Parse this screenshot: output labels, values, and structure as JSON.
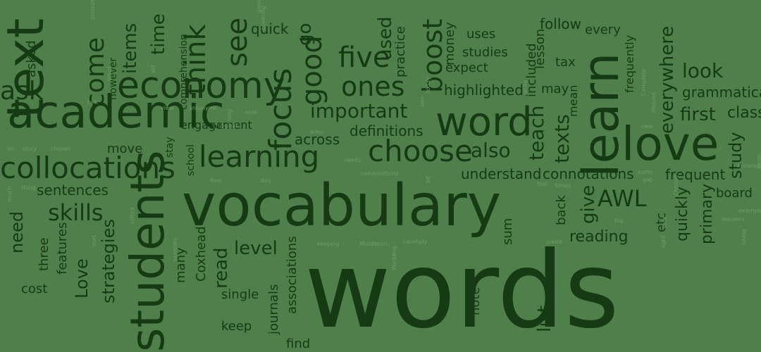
{
  "palette": {
    "background": "#4f7f4b",
    "dark": "#163b14",
    "mid": "#1f4a1c",
    "faint": "#6f9a6a"
  },
  "words": [
    {
      "text": "words",
      "tone": "dark",
      "rot": 0
    },
    {
      "text": "vocabulary",
      "tone": "dark",
      "rot": 0
    },
    {
      "text": "students",
      "tone": "dark",
      "rot": -90
    },
    {
      "text": "text",
      "tone": "dark",
      "rot": -90
    },
    {
      "text": "academic",
      "tone": "dark",
      "rot": 0
    },
    {
      "text": "learn",
      "tone": "dark",
      "rot": -90
    },
    {
      "text": "love",
      "tone": "dark",
      "rot": 0
    },
    {
      "text": "economy",
      "tone": "dark",
      "rot": 0
    },
    {
      "text": "collocations",
      "tone": "dark",
      "rot": 0
    },
    {
      "text": "word",
      "tone": "dark",
      "rot": 0
    },
    {
      "text": "choose",
      "tone": "dark",
      "rot": 0
    },
    {
      "text": "learning",
      "tone": "dark",
      "rot": 0
    },
    {
      "text": "focus",
      "tone": "dark",
      "rot": -90
    },
    {
      "text": "good",
      "tone": "dark",
      "rot": -90
    },
    {
      "text": "think",
      "tone": "dark",
      "rot": -90
    },
    {
      "text": "see",
      "tone": "dark",
      "rot": -90
    },
    {
      "text": "five",
      "tone": "dark",
      "rot": 0
    },
    {
      "text": "ones",
      "tone": "dark",
      "rot": 0
    },
    {
      "text": "boost",
      "tone": "dark",
      "rot": -90
    },
    {
      "text": "come",
      "tone": "dark",
      "rot": -90
    },
    {
      "text": "important",
      "tone": "dark",
      "rot": 0
    },
    {
      "text": "skills",
      "tone": "dark",
      "rot": 0
    },
    {
      "text": "AWL",
      "tone": "dark",
      "rot": 0
    },
    {
      "text": "look",
      "tone": "dark",
      "rot": 0
    },
    {
      "text": "first",
      "tone": "dark",
      "rot": 0
    },
    {
      "text": "everywhere",
      "tone": "dark",
      "rot": -90
    },
    {
      "text": "also",
      "tone": "dark",
      "rot": 0
    },
    {
      "text": "give",
      "tone": "dark",
      "rot": -90
    },
    {
      "text": "teach",
      "tone": "dark",
      "rot": -90
    },
    {
      "text": "texts",
      "tone": "dark",
      "rot": -90
    },
    {
      "text": "used",
      "tone": "dark",
      "rot": -90
    },
    {
      "text": "items",
      "tone": "dark",
      "rot": -90
    },
    {
      "text": "time",
      "tone": "dark",
      "rot": -90
    },
    {
      "text": "go",
      "tone": "dark",
      "rot": -90
    },
    {
      "text": "strategies",
      "tone": "dark",
      "rot": -90
    },
    {
      "text": "level",
      "tone": "dark",
      "rot": 0
    },
    {
      "text": "read",
      "tone": "dark",
      "rot": -90
    },
    {
      "text": "reading",
      "tone": "dark",
      "rot": 0
    },
    {
      "text": "frequent",
      "tone": "dark",
      "rot": 0
    },
    {
      "text": "board",
      "tone": "dark",
      "rot": 0
    },
    {
      "text": "study",
      "tone": "dark",
      "rot": -90
    },
    {
      "text": "list",
      "tone": "dark",
      "rot": -90
    },
    {
      "text": "need",
      "tone": "dark",
      "rot": -90
    },
    {
      "text": "Love",
      "tone": "dark",
      "rot": -90
    },
    {
      "text": "definitions",
      "tone": "dark",
      "rot": 0
    },
    {
      "text": "across",
      "tone": "dark",
      "rot": 0
    },
    {
      "text": "understand",
      "tone": "dark",
      "rot": 0
    },
    {
      "text": "connotations",
      "tone": "dark",
      "rot": 0
    },
    {
      "text": "highlighted",
      "tone": "dark",
      "rot": 0
    },
    {
      "text": "grammatical",
      "tone": "dark",
      "rot": 0
    },
    {
      "text": "classes",
      "tone": "dark",
      "rot": 0
    },
    {
      "text": "quickly",
      "tone": "dark",
      "rot": -90
    },
    {
      "text": "primary",
      "tone": "dark",
      "rot": -90
    },
    {
      "text": "sentences",
      "tone": "dark",
      "rot": 0
    },
    {
      "text": "move",
      "tone": "dark",
      "rot": 0
    },
    {
      "text": "engagement",
      "tone": "dark",
      "rot": 0
    },
    {
      "text": "follow",
      "tone": "dark",
      "rot": 0
    },
    {
      "text": "every",
      "tone": "dark",
      "rot": 0
    },
    {
      "text": "uses",
      "tone": "dark",
      "rot": 0
    },
    {
      "text": "studies",
      "tone": "dark",
      "rot": 0
    },
    {
      "text": "expect",
      "tone": "dark",
      "rot": 0
    },
    {
      "text": "may",
      "tone": "dark",
      "rot": 0
    },
    {
      "text": "tax",
      "tone": "dark",
      "rot": 0
    },
    {
      "text": "quick",
      "tone": "dark",
      "rot": 0
    },
    {
      "text": "practice",
      "tone": "dark",
      "rot": -90
    },
    {
      "text": "money",
      "tone": "dark",
      "rot": -90
    },
    {
      "text": "lesson",
      "tone": "dark",
      "rot": -90
    },
    {
      "text": "included",
      "tone": "dark",
      "rot": -90
    },
    {
      "text": "frequently",
      "tone": "dark",
      "rot": -90
    },
    {
      "text": "mean",
      "tone": "dark",
      "rot": -90
    },
    {
      "text": "back",
      "tone": "dark",
      "rot": -90
    },
    {
      "text": "etc",
      "tone": "dark",
      "rot": -90
    },
    {
      "text": "sum",
      "tone": "dark",
      "rot": -90
    },
    {
      "text": "note",
      "tone": "dark",
      "rot": -90
    },
    {
      "text": "find",
      "tone": "dark",
      "rot": 0
    },
    {
      "text": "keep",
      "tone": "dark",
      "rot": 0
    },
    {
      "text": "single",
      "tone": "dark",
      "rot": 0
    },
    {
      "text": "journals",
      "tone": "dark",
      "rot": -90
    },
    {
      "text": "associations",
      "tone": "dark",
      "rot": -90
    },
    {
      "text": "Coxhead",
      "tone": "dark",
      "rot": -90
    },
    {
      "text": "many",
      "tone": "dark",
      "rot": -90
    },
    {
      "text": "cost",
      "tone": "dark",
      "rot": 0
    },
    {
      "text": "three",
      "tone": "dark",
      "rot": -90
    },
    {
      "text": "features",
      "tone": "dark",
      "rot": -90
    },
    {
      "text": "however",
      "tone": "dark",
      "rot": -90
    },
    {
      "text": "asked",
      "tone": "dark",
      "rot": -90
    },
    {
      "text": "comprehension",
      "tone": "dark",
      "rot": -90
    },
    {
      "text": "stay",
      "tone": "dark",
      "rot": -90
    },
    {
      "text": "school",
      "tone": "dark",
      "rot": -90
    },
    {
      "text": "ask",
      "tone": "dark",
      "rot": 0
    },
    {
      "text": "covering",
      "tone": "faint",
      "rot": -90
    },
    {
      "text": "general",
      "tone": "faint",
      "rot": -90
    },
    {
      "text": "pronunciation",
      "tone": "faint",
      "rot": -90
    },
    {
      "text": "wit",
      "tone": "faint",
      "rot": -90
    },
    {
      "text": "Word",
      "tone": "faint",
      "rot": -90
    },
    {
      "text": "talk",
      "tone": "faint",
      "rot": 0
    },
    {
      "text": "view",
      "tone": "faint",
      "rot": 0
    },
    {
      "text": "antonyms",
      "tone": "faint",
      "rot": 0
    },
    {
      "text": "side",
      "tone": "faint",
      "rot": 0
    },
    {
      "text": "long",
      "tone": "faint",
      "rot": -90
    },
    {
      "text": "chit-chat",
      "tone": "faint",
      "rot": 0
    },
    {
      "text": "aims",
      "tone": "faint",
      "rot": 0
    },
    {
      "text": "aim",
      "tone": "faint",
      "rot": -90
    },
    {
      "text": "today",
      "tone": "faint",
      "rot": -90
    },
    {
      "text": "write",
      "tone": "faint",
      "rot": -90
    },
    {
      "text": "Complete",
      "tone": "faint",
      "rot": -90
    },
    {
      "text": "discuss",
      "tone": "faint",
      "rot": -90
    },
    {
      "text": "new",
      "tone": "faint",
      "rot": 0
    },
    {
      "text": "air",
      "tone": "faint",
      "rot": 0
    },
    {
      "text": "story",
      "tone": "faint",
      "rot": 0
    },
    {
      "text": "chosen",
      "tone": "faint",
      "rot": 0
    },
    {
      "text": "free",
      "tone": "faint",
      "rot": 0
    },
    {
      "text": "day",
      "tone": "faint",
      "rot": 0
    },
    {
      "text": "needs",
      "tone": "faint",
      "rot": 0
    },
    {
      "text": "combinations",
      "tone": "faint",
      "rot": 0
    },
    {
      "text": "bit",
      "tone": "faint",
      "rot": -90
    },
    {
      "text": "tool",
      "tone": "faint",
      "rot": 0
    },
    {
      "text": "times",
      "tone": "faint",
      "rot": 0
    },
    {
      "text": "sums",
      "tone": "faint",
      "rot": 0
    },
    {
      "text": "get",
      "tone": "faint",
      "rot": 0
    },
    {
      "text": "Choose",
      "tone": "faint",
      "rot": -90
    },
    {
      "text": "knowledge",
      "tone": "faint",
      "rot": 0
    },
    {
      "text": "examples",
      "tone": "faint",
      "rot": 0
    },
    {
      "text": "learners",
      "tone": "faint",
      "rot": 0
    },
    {
      "text": "using",
      "tone": "faint",
      "rot": -90
    },
    {
      "text": "begin",
      "tone": "faint",
      "rot": -90
    },
    {
      "text": "much",
      "tone": "faint",
      "rot": -90
    },
    {
      "text": "thing",
      "tone": "faint",
      "rot": 0
    },
    {
      "text": "critics",
      "tone": "faint",
      "rot": -90
    },
    {
      "text": "met",
      "tone": "faint",
      "rot": -90
    },
    {
      "text": "samples",
      "tone": "faint",
      "rot": -90
    },
    {
      "text": "keeping",
      "tone": "faint",
      "rot": 0
    },
    {
      "text": "Middleton",
      "tone": "faint",
      "rot": 0
    },
    {
      "text": "carefully",
      "tone": "faint",
      "rot": 0
    },
    {
      "text": "Wedding",
      "tone": "faint",
      "rot": -90
    },
    {
      "text": "paste",
      "tone": "faint",
      "rot": 0
    },
    {
      "text": "big",
      "tone": "faint",
      "rot": 0
    },
    {
      "text": "light",
      "tone": "faint",
      "rot": -90
    },
    {
      "text": "sold",
      "tone": "faint",
      "rot": -90
    }
  ]
}
